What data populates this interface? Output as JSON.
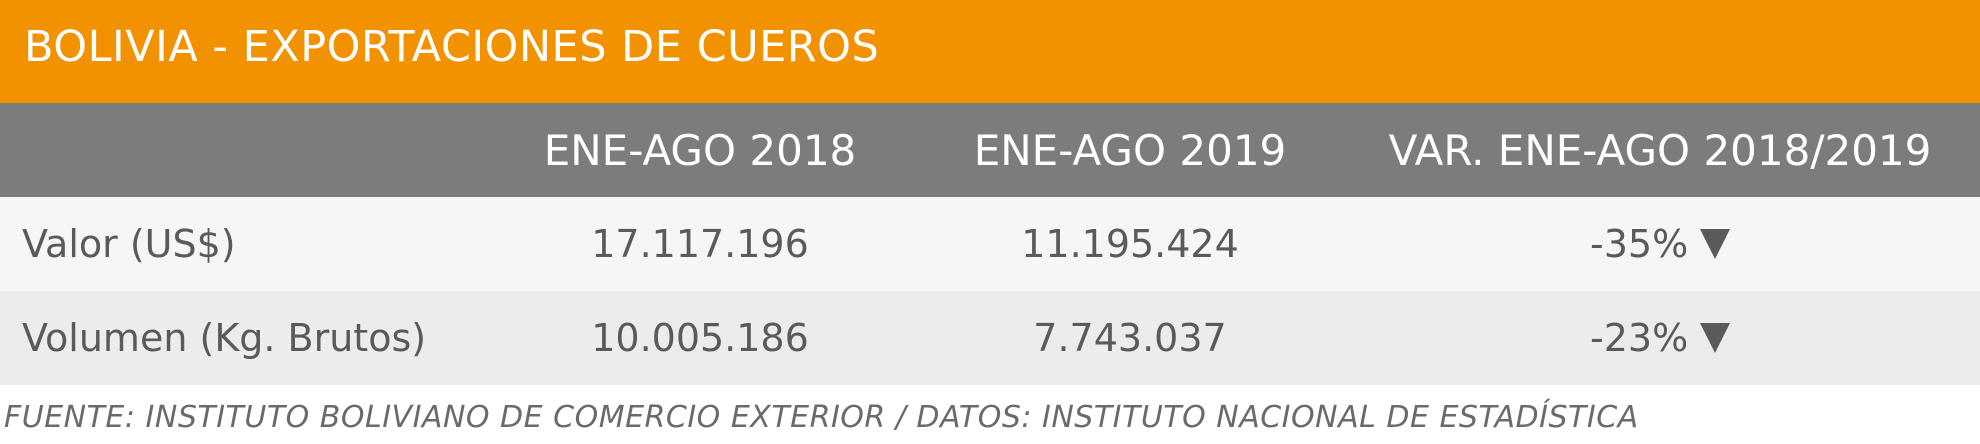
{
  "title": "BOLIVIA - EXPORTACIONES DE CUEROS",
  "headers": [
    "",
    "ENE-AGO 2018",
    "ENE-AGO 2019",
    "VAR. ENE-AGO 2018/2019"
  ],
  "rows": [
    {
      "label": "Valor (US$)",
      "v2018": "17.117.196",
      "v2019": "11.195.424",
      "change": "-35%",
      "trend_icon": "down-triangle-icon"
    },
    {
      "label": "Volumen (Kg. Brutos)",
      "v2018": "10.005.186",
      "v2019": "7.743.037",
      "change": "-23%",
      "trend_icon": "down-triangle-icon"
    }
  ],
  "footer": "FUENTE: INSTITUTO BOLIVIANO DE COMERCIO EXTERIOR / DATOS: INSTITUTO NACIONAL DE ESTADÍSTICA",
  "colors": {
    "title_bg": "#f39200",
    "header_bg": "#7c7c7c",
    "row_odd": "#f6f6f6",
    "row_even": "#ececec",
    "text": "#5a5a5a"
  }
}
